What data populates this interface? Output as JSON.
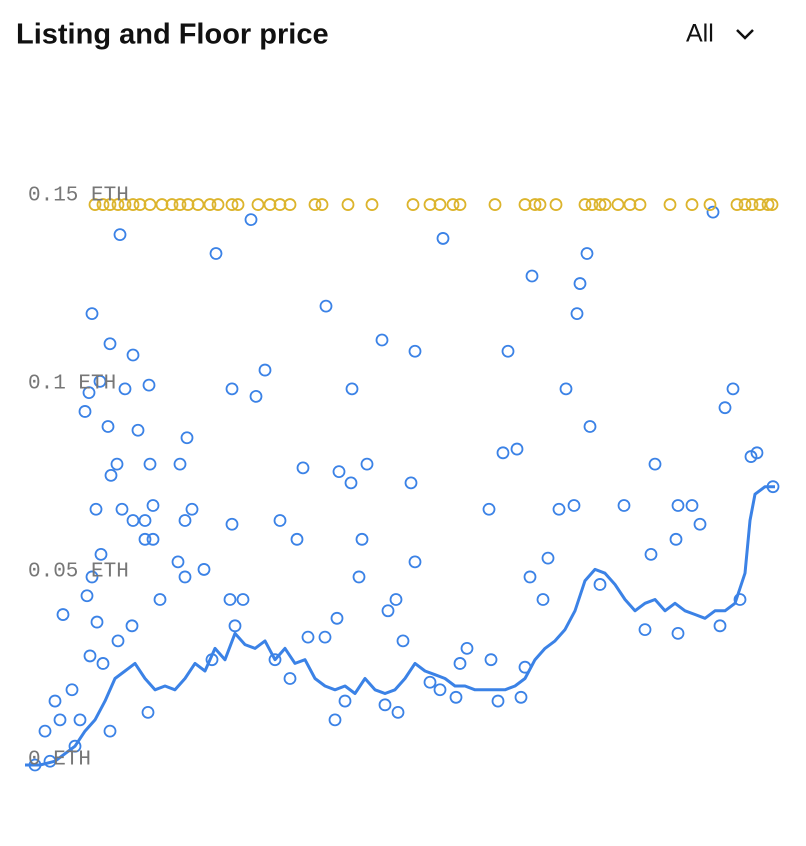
{
  "controls": {
    "range": "All"
  },
  "chart_data": {
    "type": "scatter",
    "title": "Listing and Floor price",
    "xlim": [
      0,
      750
    ],
    "ylim": [
      0,
      0.155
    ],
    "yticks": [
      {
        "value": 0,
        "label": "0 ETH"
      },
      {
        "value": 0.05,
        "label": "0.05 ETH"
      },
      {
        "value": 0.1,
        "label": "0.1 ETH"
      },
      {
        "value": 0.15,
        "label": "0.15 ETH"
      }
    ],
    "series": [
      {
        "type": "scatter",
        "color": "#3b82e6",
        "x": [
          95,
          226,
          191,
          418,
          688,
          562,
          507,
          555,
          552,
          301,
          67,
          85,
          108,
          357,
          390,
          483,
          240,
          64,
          75,
          100,
          124,
          207,
          231,
          327,
          541,
          708,
          700,
          60,
          83,
          113,
          565,
          162,
          478,
          492,
          726,
          92,
          125,
          155,
          278,
          314,
          342,
          630,
          86,
          326,
          386,
          71,
          97,
          128,
          167,
          207,
          255,
          464,
          534,
          549,
          599,
          653,
          667,
          108,
          120,
          160,
          272,
          337,
          390,
          76,
          120,
          128,
          153,
          179,
          523,
          626,
          651,
          675,
          334,
          505,
          67,
          160,
          218,
          205,
          518,
          371,
          363,
          38,
          135,
          312,
          107,
          653,
          300,
          378,
          442,
          466,
          283,
          187,
          123,
          35,
          47,
          65,
          78,
          435,
          500,
          310,
          373,
          431,
          473,
          496,
          575,
          620,
          695,
          715,
          748,
          732,
          62,
          72,
          93,
          30,
          20,
          50,
          25,
          10,
          55,
          85,
          210,
          250,
          265,
          320,
          360,
          405,
          415
        ],
        "values": [
          0.141,
          0.145,
          0.136,
          0.14,
          0.147,
          0.136,
          0.13,
          0.128,
          0.12,
          0.122,
          0.12,
          0.112,
          0.109,
          0.113,
          0.11,
          0.11,
          0.105,
          0.099,
          0.102,
          0.1,
          0.101,
          0.1,
          0.098,
          0.1,
          0.1,
          0.1,
          0.095,
          0.094,
          0.09,
          0.089,
          0.09,
          0.087,
          0.083,
          0.084,
          0.082,
          0.08,
          0.08,
          0.08,
          0.079,
          0.078,
          0.08,
          0.08,
          0.077,
          0.075,
          0.075,
          0.068,
          0.068,
          0.069,
          0.068,
          0.064,
          0.065,
          0.068,
          0.068,
          0.069,
          0.069,
          0.069,
          0.069,
          0.065,
          0.065,
          0.065,
          0.06,
          0.06,
          0.054,
          0.056,
          0.06,
          0.06,
          0.054,
          0.052,
          0.055,
          0.056,
          0.06,
          0.064,
          0.05,
          0.05,
          0.05,
          0.05,
          0.044,
          0.044,
          0.044,
          0.044,
          0.041,
          0.04,
          0.044,
          0.039,
          0.037,
          0.035,
          0.034,
          0.033,
          0.031,
          0.028,
          0.034,
          0.028,
          0.014,
          0.012,
          0.02,
          0.029,
          0.027,
          0.027,
          0.026,
          0.012,
          0.014,
          0.018,
          0.017,
          0.018,
          0.048,
          0.036,
          0.037,
          0.044,
          0.074,
          0.083,
          0.045,
          0.038,
          0.033,
          0.017,
          0.009,
          0.005,
          0.001,
          0,
          0.012,
          0.009,
          0.037,
          0.028,
          0.023,
          0.017,
          0.016,
          0.022,
          0.02
        ]
      },
      {
        "type": "scatter",
        "color": "#dcb42c",
        "x": [
          70,
          78,
          85,
          93,
          100,
          108,
          115,
          125,
          137,
          147,
          155,
          163,
          173,
          185,
          193,
          207,
          213,
          233,
          245,
          255,
          265,
          290,
          297,
          323,
          347,
          388,
          405,
          415,
          428,
          435,
          470,
          500,
          510,
          515,
          531,
          560,
          567,
          575,
          580,
          593,
          605,
          615,
          645,
          667,
          685,
          712,
          720,
          727,
          735,
          743,
          747
        ],
        "values": [
          0.149,
          0.149,
          0.149,
          0.149,
          0.149,
          0.149,
          0.149,
          0.149,
          0.149,
          0.149,
          0.149,
          0.149,
          0.149,
          0.149,
          0.149,
          0.149,
          0.149,
          0.149,
          0.149,
          0.149,
          0.149,
          0.149,
          0.149,
          0.149,
          0.149,
          0.149,
          0.149,
          0.149,
          0.149,
          0.149,
          0.149,
          0.149,
          0.149,
          0.149,
          0.149,
          0.149,
          0.149,
          0.149,
          0.149,
          0.149,
          0.149,
          0.149,
          0.149,
          0.149,
          0.149,
          0.149,
          0.149,
          0.149,
          0.149,
          0.149,
          0.149
        ]
      },
      {
        "type": "line",
        "color": "#3b82e6",
        "x": [
          0,
          15,
          30,
          40,
          50,
          60,
          70,
          80,
          90,
          100,
          110,
          120,
          130,
          140,
          150,
          160,
          170,
          180,
          190,
          200,
          210,
          220,
          230,
          240,
          250,
          260,
          270,
          280,
          290,
          300,
          310,
          320,
          330,
          340,
          350,
          360,
          370,
          380,
          390,
          400,
          410,
          420,
          430,
          440,
          450,
          460,
          470,
          480,
          490,
          500,
          510,
          520,
          530,
          540,
          550,
          560,
          570,
          580,
          590,
          600,
          610,
          620,
          630,
          640,
          650,
          660,
          670,
          680,
          690,
          700,
          710,
          720,
          725,
          730,
          740,
          750
        ],
        "values": [
          0,
          0,
          0.001,
          0.003,
          0.005,
          0.009,
          0.012,
          0.017,
          0.023,
          0.025,
          0.027,
          0.023,
          0.02,
          0.021,
          0.02,
          0.023,
          0.027,
          0.025,
          0.031,
          0.028,
          0.035,
          0.032,
          0.031,
          0.033,
          0.028,
          0.031,
          0.027,
          0.028,
          0.023,
          0.021,
          0.02,
          0.021,
          0.019,
          0.023,
          0.02,
          0.019,
          0.02,
          0.023,
          0.027,
          0.025,
          0.024,
          0.023,
          0.021,
          0.021,
          0.02,
          0.02,
          0.02,
          0.02,
          0.021,
          0.023,
          0.028,
          0.031,
          0.033,
          0.036,
          0.041,
          0.049,
          0.052,
          0.051,
          0.048,
          0.044,
          0.041,
          0.043,
          0.044,
          0.041,
          0.043,
          0.041,
          0.04,
          0.039,
          0.041,
          0.041,
          0.043,
          0.051,
          0.065,
          0.072,
          0.074,
          0.074
        ]
      }
    ]
  }
}
